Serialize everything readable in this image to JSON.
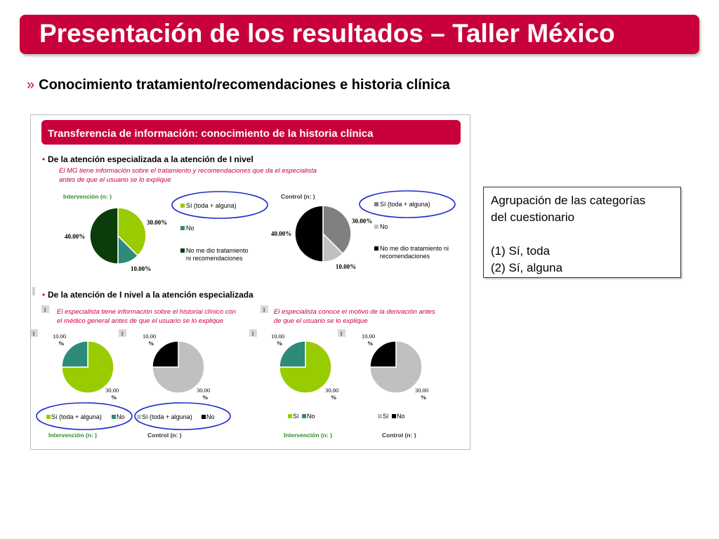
{
  "slide": {
    "title": "Presentación de los resultados – Taller México",
    "subtitle_marker": "»",
    "subtitle": "Conocimiento tratamiento/recomendaciones e historia clínica"
  },
  "figure": {
    "header": "Transferencia de información: conocimiento de la historia clínica",
    "section1": {
      "bullet": "•",
      "heading": "De la atención especializada a la atención de I nivel",
      "question": [
        "El MG tiene información sobre el tratamiento y recomendaciones que da el especialista",
        "antes de que el usuario se lo explique"
      ]
    },
    "section2": {
      "bullet": "•",
      "heading": "De la atención de I nivel a la atención especializada",
      "question_left": [
        "El  especialista tiene información sobre el historial clínico con",
        "el médico general antes de que el usuario se lo explique"
      ],
      "question_right": [
        "El  especialista conoce el motivo de la derivación antes",
        "de que el usuario se lo explique"
      ],
      "marker": "1"
    }
  },
  "infobox": {
    "line1": "Agrupación de las categorías",
    "line2": "del cuestionario",
    "line3": "(1) Sí, toda",
    "line4": "(2) Sí, alguna"
  },
  "colors": {
    "brand": "#c8003c",
    "lime": "#99cc00",
    "teal": "#2e8b7a",
    "dark_green": "#0b3d0b",
    "gray": "#808080",
    "light_gray": "#c0c0c0",
    "black": "#000000",
    "highlight_ellipse": "#1f2dc8"
  },
  "chart_data": [
    {
      "type": "pie",
      "group": "Intervención (n: )",
      "slices": [
        {
          "label": "Sí (toda + alguna)",
          "value": 30,
          "color": "#99cc00"
        },
        {
          "label": "No",
          "value": 10,
          "color": "#2e8b7a"
        },
        {
          "label": "No me dio tratamiento ni recomendaciones",
          "value": 40,
          "color": "#0b3d0b"
        }
      ],
      "value_labels": [
        "30.00%",
        "10.00%",
        "40.00%"
      ]
    },
    {
      "type": "pie",
      "group": "Control (n: )",
      "slices": [
        {
          "label": "Sí (toda + alguna)",
          "value": 30,
          "color": "#808080"
        },
        {
          "label": "No",
          "value": 10,
          "color": "#c0c0c0"
        },
        {
          "label": "No me dio tratamiento ni recomendaciones",
          "value": 40,
          "color": "#000000"
        }
      ],
      "value_labels": [
        "30.00%",
        "10.00%",
        "40.00%"
      ]
    },
    {
      "type": "pie",
      "group": "Intervención (n: )",
      "slices": [
        {
          "label": "Sí (toda + alguna)",
          "value": 30,
          "color": "#99cc00"
        },
        {
          "label": "No",
          "value": 10,
          "color": "#2e8b7a"
        }
      ],
      "value_labels": [
        "30.00",
        "10.00"
      ]
    },
    {
      "type": "pie",
      "group": "Control (n: )",
      "slices": [
        {
          "label": "Sí (toda + alguna)",
          "value": 30,
          "color": "#c0c0c0"
        },
        {
          "label": "No",
          "value": 10,
          "color": "#000000"
        }
      ],
      "value_labels": [
        "30.00",
        "10.00"
      ]
    },
    {
      "type": "pie",
      "group": "Intervención (n: )",
      "slices": [
        {
          "label": "Sí",
          "value": 30,
          "color": "#99cc00"
        },
        {
          "label": "No",
          "value": 10,
          "color": "#2e8b7a"
        }
      ],
      "value_labels": [
        "30.00",
        "10.00"
      ]
    },
    {
      "type": "pie",
      "group": "Control (n: )",
      "slices": [
        {
          "label": "Sí",
          "value": 30,
          "color": "#c0c0c0"
        },
        {
          "label": "No",
          "value": 10,
          "color": "#000000"
        }
      ],
      "value_labels": [
        "30.00",
        "10.00"
      ]
    }
  ],
  "labels": {
    "percent_sign": "%",
    "legend_no_treatment": [
      "No me dio tratamiento",
      "ni recomendaciones"
    ],
    "legend_no_treatment_ctrl": [
      "No me dio tratamiento ni",
      "recomendaciones"
    ]
  }
}
